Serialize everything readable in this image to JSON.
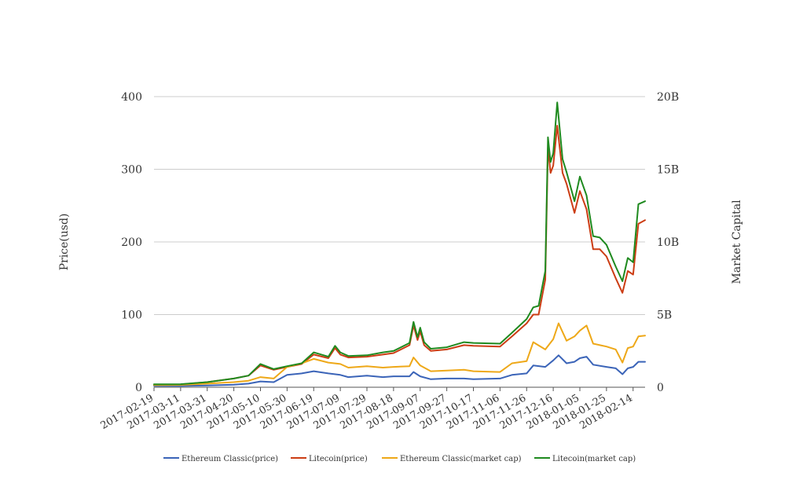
{
  "chart_data": {
    "type": "line",
    "title": "",
    "ylabel": "Price(usd)",
    "y2label": "Market Capital",
    "ylim": [
      0,
      400
    ],
    "y2lim": [
      0,
      20000000000
    ],
    "y_ticks": [
      {
        "value": 0,
        "label": "0"
      },
      {
        "value": 100,
        "label": "100"
      },
      {
        "value": 200,
        "label": "200"
      },
      {
        "value": 300,
        "label": "300"
      },
      {
        "value": 400,
        "label": "400"
      }
    ],
    "y2_ticks": [
      {
        "value": 0,
        "label": "0"
      },
      {
        "value": 5000000000,
        "label": "5B"
      },
      {
        "value": 10000000000,
        "label": "10B"
      },
      {
        "value": 15000000000,
        "label": "15B"
      },
      {
        "value": 20000000000,
        "label": "20B"
      }
    ],
    "x_range": [
      "2017-02-19",
      "2018-02-23"
    ],
    "x_ticks": [
      "2017-02-19",
      "2017-03-11",
      "2017-03-31",
      "2017-04-20",
      "2017-05-10",
      "2017-05-30",
      "2017-06-19",
      "2017-07-09",
      "2017-07-29",
      "2017-08-18",
      "2017-09-07",
      "2017-09-27",
      "2017-10-17",
      "2017-11-06",
      "2017-11-26",
      "2017-12-16",
      "2018-01-05",
      "2018-01-25",
      "2018-02-14"
    ],
    "grid": true,
    "legend_position": "bottom",
    "series": [
      {
        "name": "Ethereum Classic(price)",
        "axis": "left",
        "color": "#3b64b8",
        "points": [
          [
            "2017-02-19",
            1.8
          ],
          [
            "2017-03-11",
            1.9
          ],
          [
            "2017-03-31",
            2.5
          ],
          [
            "2017-04-20",
            3.5
          ],
          [
            "2017-05-01",
            5
          ],
          [
            "2017-05-10",
            8
          ],
          [
            "2017-05-20",
            7
          ],
          [
            "2017-05-30",
            17
          ],
          [
            "2017-06-10",
            19
          ],
          [
            "2017-06-19",
            22
          ],
          [
            "2017-06-30",
            19
          ],
          [
            "2017-07-09",
            17
          ],
          [
            "2017-07-15",
            14
          ],
          [
            "2017-07-29",
            16
          ],
          [
            "2017-08-10",
            14
          ],
          [
            "2017-08-18",
            15
          ],
          [
            "2017-08-30",
            15
          ],
          [
            "2017-09-02",
            21
          ],
          [
            "2017-09-07",
            15
          ],
          [
            "2017-09-15",
            11
          ],
          [
            "2017-09-27",
            12
          ],
          [
            "2017-10-10",
            12
          ],
          [
            "2017-10-17",
            11
          ],
          [
            "2017-11-06",
            12
          ],
          [
            "2017-11-15",
            17
          ],
          [
            "2017-11-26",
            19
          ],
          [
            "2017-12-01",
            30
          ],
          [
            "2017-12-10",
            28
          ],
          [
            "2017-12-16",
            37
          ],
          [
            "2017-12-20",
            44
          ],
          [
            "2017-12-26",
            33
          ],
          [
            "2018-01-01",
            35
          ],
          [
            "2018-01-05",
            40
          ],
          [
            "2018-01-10",
            42
          ],
          [
            "2018-01-15",
            31
          ],
          [
            "2018-01-25",
            28
          ],
          [
            "2018-02-01",
            26
          ],
          [
            "2018-02-06",
            18
          ],
          [
            "2018-02-10",
            26
          ],
          [
            "2018-02-14",
            28
          ],
          [
            "2018-02-18",
            35
          ],
          [
            "2018-02-23",
            35
          ]
        ]
      },
      {
        "name": "Litecoin(price)",
        "axis": "left",
        "color": "#cc3d14",
        "points": [
          [
            "2017-02-19",
            3.8
          ],
          [
            "2017-03-11",
            3.9
          ],
          [
            "2017-03-31",
            7
          ],
          [
            "2017-04-20",
            12
          ],
          [
            "2017-05-01",
            16
          ],
          [
            "2017-05-10",
            30
          ],
          [
            "2017-05-20",
            24
          ],
          [
            "2017-05-30",
            28
          ],
          [
            "2017-06-10",
            32
          ],
          [
            "2017-06-19",
            45
          ],
          [
            "2017-06-30",
            40
          ],
          [
            "2017-07-05",
            54
          ],
          [
            "2017-07-09",
            45
          ],
          [
            "2017-07-15",
            41
          ],
          [
            "2017-07-29",
            42
          ],
          [
            "2017-08-10",
            45
          ],
          [
            "2017-08-18",
            47
          ],
          [
            "2017-08-30",
            58
          ],
          [
            "2017-09-02",
            85
          ],
          [
            "2017-09-05",
            65
          ],
          [
            "2017-09-07",
            77
          ],
          [
            "2017-09-10",
            58
          ],
          [
            "2017-09-15",
            50
          ],
          [
            "2017-09-27",
            52
          ],
          [
            "2017-10-10",
            58
          ],
          [
            "2017-10-17",
            57
          ],
          [
            "2017-11-06",
            56
          ],
          [
            "2017-11-15",
            70
          ],
          [
            "2017-11-26",
            88
          ],
          [
            "2017-12-01",
            100
          ],
          [
            "2017-12-05",
            100
          ],
          [
            "2017-12-10",
            148
          ],
          [
            "2017-12-12",
            330
          ],
          [
            "2017-12-14",
            295
          ],
          [
            "2017-12-16",
            305
          ],
          [
            "2017-12-19",
            360
          ],
          [
            "2017-12-23",
            295
          ],
          [
            "2017-12-26",
            280
          ],
          [
            "2018-01-01",
            240
          ],
          [
            "2018-01-05",
            270
          ],
          [
            "2018-01-10",
            245
          ],
          [
            "2018-01-15",
            190
          ],
          [
            "2018-01-20",
            190
          ],
          [
            "2018-01-25",
            180
          ],
          [
            "2018-02-01",
            150
          ],
          [
            "2018-02-06",
            130
          ],
          [
            "2018-02-10",
            160
          ],
          [
            "2018-02-14",
            155
          ],
          [
            "2018-02-18",
            225
          ],
          [
            "2018-02-23",
            230
          ]
        ]
      },
      {
        "name": "Ethereum Classic(market cap)",
        "axis": "right",
        "color": "#eea818",
        "points": [
          [
            "2017-02-19",
            150000000
          ],
          [
            "2017-03-11",
            160000000
          ],
          [
            "2017-03-31",
            250000000
          ],
          [
            "2017-04-20",
            350000000
          ],
          [
            "2017-05-01",
            450000000
          ],
          [
            "2017-05-10",
            700000000
          ],
          [
            "2017-05-20",
            600000000
          ],
          [
            "2017-05-30",
            1400000000
          ],
          [
            "2017-06-10",
            1650000000
          ],
          [
            "2017-06-19",
            1950000000
          ],
          [
            "2017-06-30",
            1700000000
          ],
          [
            "2017-07-09",
            1600000000
          ],
          [
            "2017-07-15",
            1350000000
          ],
          [
            "2017-07-29",
            1450000000
          ],
          [
            "2017-08-10",
            1350000000
          ],
          [
            "2017-08-18",
            1400000000
          ],
          [
            "2017-08-30",
            1450000000
          ],
          [
            "2017-09-02",
            2050000000
          ],
          [
            "2017-09-07",
            1500000000
          ],
          [
            "2017-09-15",
            1100000000
          ],
          [
            "2017-09-27",
            1150000000
          ],
          [
            "2017-10-10",
            1200000000
          ],
          [
            "2017-10-17",
            1100000000
          ],
          [
            "2017-11-06",
            1050000000
          ],
          [
            "2017-11-15",
            1650000000
          ],
          [
            "2017-11-26",
            1800000000
          ],
          [
            "2017-12-01",
            3100000000
          ],
          [
            "2017-12-10",
            2600000000
          ],
          [
            "2017-12-16",
            3300000000
          ],
          [
            "2017-12-20",
            4400000000
          ],
          [
            "2017-12-26",
            3200000000
          ],
          [
            "2018-01-01",
            3500000000
          ],
          [
            "2018-01-05",
            3900000000
          ],
          [
            "2018-01-10",
            4250000000
          ],
          [
            "2018-01-15",
            3000000000
          ],
          [
            "2018-01-25",
            2800000000
          ],
          [
            "2018-02-01",
            2600000000
          ],
          [
            "2018-02-06",
            1700000000
          ],
          [
            "2018-02-10",
            2700000000
          ],
          [
            "2018-02-14",
            2800000000
          ],
          [
            "2018-02-18",
            3500000000
          ],
          [
            "2018-02-23",
            3550000000
          ]
        ]
      },
      {
        "name": "Litecoin(market cap)",
        "axis": "right",
        "color": "#1f8a1f",
        "points": [
          [
            "2017-02-19",
            200000000
          ],
          [
            "2017-03-11",
            210000000
          ],
          [
            "2017-03-31",
            350000000
          ],
          [
            "2017-04-20",
            600000000
          ],
          [
            "2017-05-01",
            800000000
          ],
          [
            "2017-05-10",
            1600000000
          ],
          [
            "2017-05-20",
            1250000000
          ],
          [
            "2017-05-30",
            1450000000
          ],
          [
            "2017-06-10",
            1650000000
          ],
          [
            "2017-06-19",
            2400000000
          ],
          [
            "2017-06-30",
            2100000000
          ],
          [
            "2017-07-05",
            2850000000
          ],
          [
            "2017-07-09",
            2400000000
          ],
          [
            "2017-07-15",
            2150000000
          ],
          [
            "2017-07-29",
            2200000000
          ],
          [
            "2017-08-10",
            2400000000
          ],
          [
            "2017-08-18",
            2500000000
          ],
          [
            "2017-08-30",
            3050000000
          ],
          [
            "2017-09-02",
            4500000000
          ],
          [
            "2017-09-05",
            3450000000
          ],
          [
            "2017-09-07",
            4100000000
          ],
          [
            "2017-09-10",
            3100000000
          ],
          [
            "2017-09-15",
            2650000000
          ],
          [
            "2017-09-27",
            2750000000
          ],
          [
            "2017-10-10",
            3100000000
          ],
          [
            "2017-10-17",
            3050000000
          ],
          [
            "2017-11-06",
            3000000000
          ],
          [
            "2017-11-15",
            3750000000
          ],
          [
            "2017-11-26",
            4700000000
          ],
          [
            "2017-12-01",
            5500000000
          ],
          [
            "2017-12-05",
            5600000000
          ],
          [
            "2017-12-10",
            8000000000
          ],
          [
            "2017-12-12",
            17200000000
          ],
          [
            "2017-12-14",
            15500000000
          ],
          [
            "2017-12-16",
            16100000000
          ],
          [
            "2017-12-19",
            19600000000
          ],
          [
            "2017-12-23",
            15700000000
          ],
          [
            "2017-12-26",
            14800000000
          ],
          [
            "2018-01-01",
            12800000000
          ],
          [
            "2018-01-05",
            14500000000
          ],
          [
            "2018-01-10",
            13200000000
          ],
          [
            "2018-01-15",
            10400000000
          ],
          [
            "2018-01-20",
            10300000000
          ],
          [
            "2018-01-25",
            9800000000
          ],
          [
            "2018-02-01",
            8300000000
          ],
          [
            "2018-02-06",
            7300000000
          ],
          [
            "2018-02-10",
            8900000000
          ],
          [
            "2018-02-14",
            8600000000
          ],
          [
            "2018-02-18",
            12600000000
          ],
          [
            "2018-02-23",
            12800000000
          ]
        ]
      }
    ]
  }
}
